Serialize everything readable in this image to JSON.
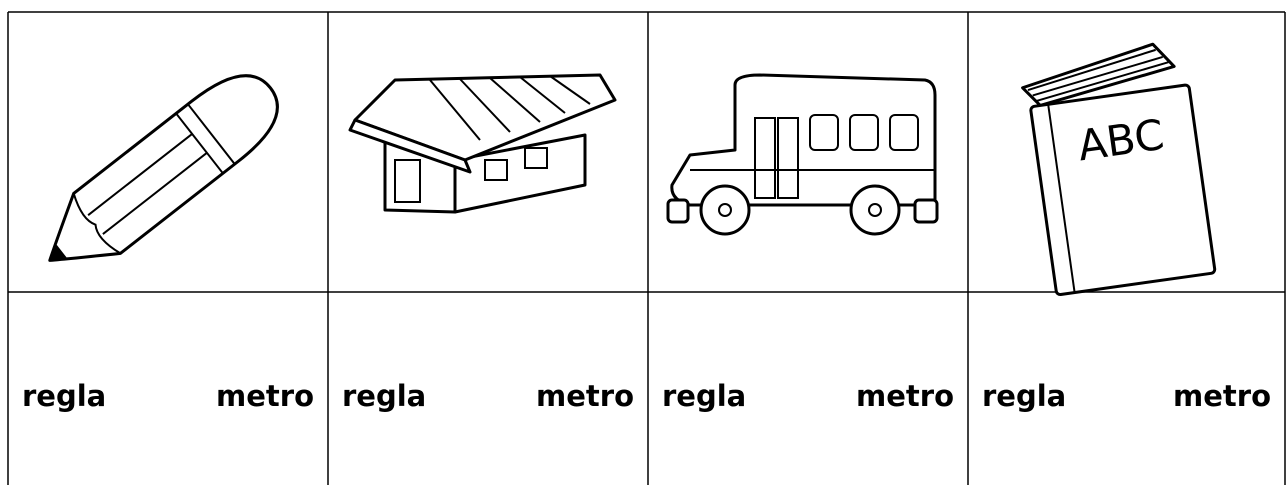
{
  "book_cover": "ABC",
  "answer_cells": [
    [
      "regla",
      "metro"
    ],
    [
      "regla",
      "metro"
    ],
    [
      "regla",
      "metro"
    ],
    [
      "regla",
      "metro"
    ]
  ]
}
